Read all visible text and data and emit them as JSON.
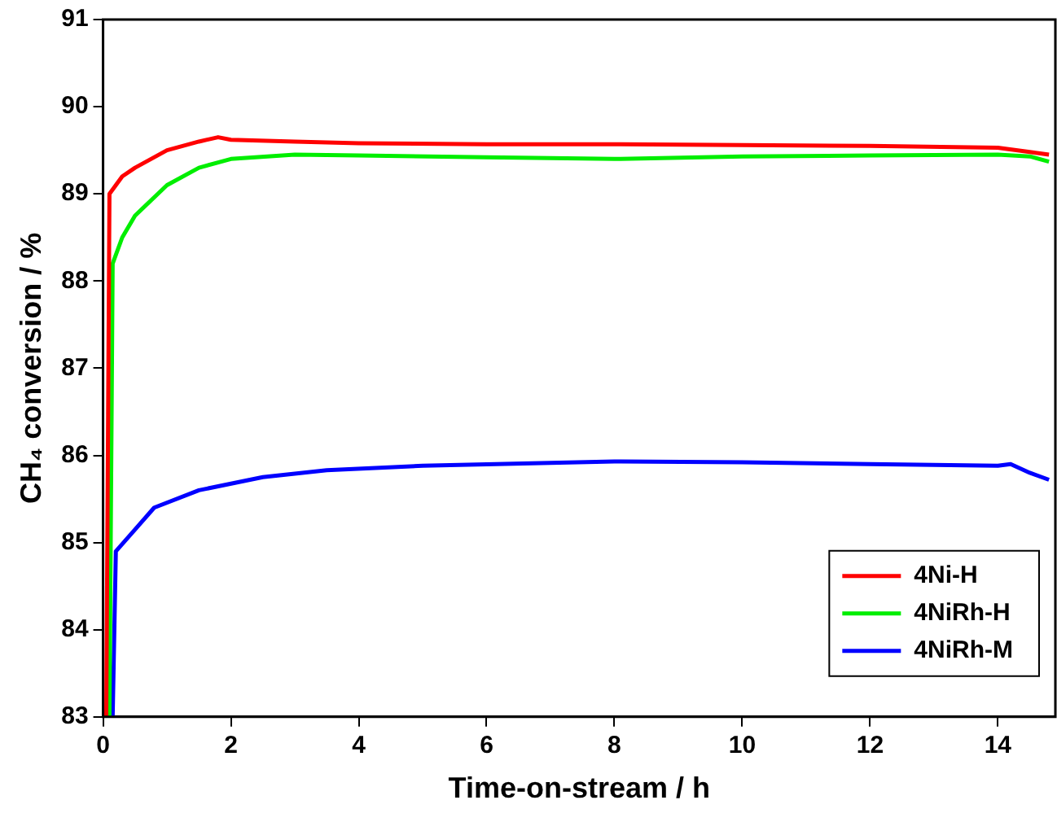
{
  "chart_data": {
    "type": "line",
    "xlabel": "Time-on-stream / h",
    "ylabel": "CH₄ conversion / %",
    "xlim": [
      0,
      14.9
    ],
    "ylim": [
      83,
      91
    ],
    "xticks": [
      0,
      2,
      4,
      6,
      8,
      10,
      12,
      14
    ],
    "yticks": [
      83,
      84,
      85,
      86,
      87,
      88,
      89,
      90,
      91
    ],
    "grid": false,
    "legend": "bottom right",
    "marker": "none",
    "line_style": "solid",
    "series": [
      {
        "name": "4Ni-H",
        "color": "#ff0000",
        "x": [
          0.05,
          0.1,
          0.3,
          0.5,
          1,
          1.5,
          1.8,
          2,
          3,
          4,
          6,
          8,
          10,
          12,
          14,
          14.5,
          14.8
        ],
        "values": [
          83,
          89,
          89.2,
          89.3,
          89.5,
          89.6,
          89.65,
          89.62,
          89.6,
          89.58,
          89.57,
          89.57,
          89.56,
          89.55,
          89.53,
          89.48,
          89.45
        ]
      },
      {
        "name": "4NiRh-H",
        "color": "#00ee00",
        "x": [
          0.1,
          0.15,
          0.3,
          0.5,
          1,
          1.5,
          2,
          3,
          4,
          6,
          8,
          10,
          12,
          14,
          14.5,
          14.8
        ],
        "values": [
          83,
          88.2,
          88.5,
          88.75,
          89.1,
          89.3,
          89.4,
          89.45,
          89.44,
          89.42,
          89.4,
          89.43,
          89.44,
          89.45,
          89.43,
          89.37
        ]
      },
      {
        "name": "4NiRh-M",
        "color": "#0000ff",
        "x": [
          0.15,
          0.2,
          0.5,
          0.8,
          1.5,
          2.5,
          3.5,
          5,
          8,
          10,
          12,
          14,
          14.2,
          14.5,
          14.8
        ],
        "values": [
          83,
          84.9,
          85.15,
          85.4,
          85.6,
          85.75,
          85.83,
          85.88,
          85.93,
          85.92,
          85.9,
          85.88,
          85.9,
          85.8,
          85.72
        ]
      }
    ]
  }
}
